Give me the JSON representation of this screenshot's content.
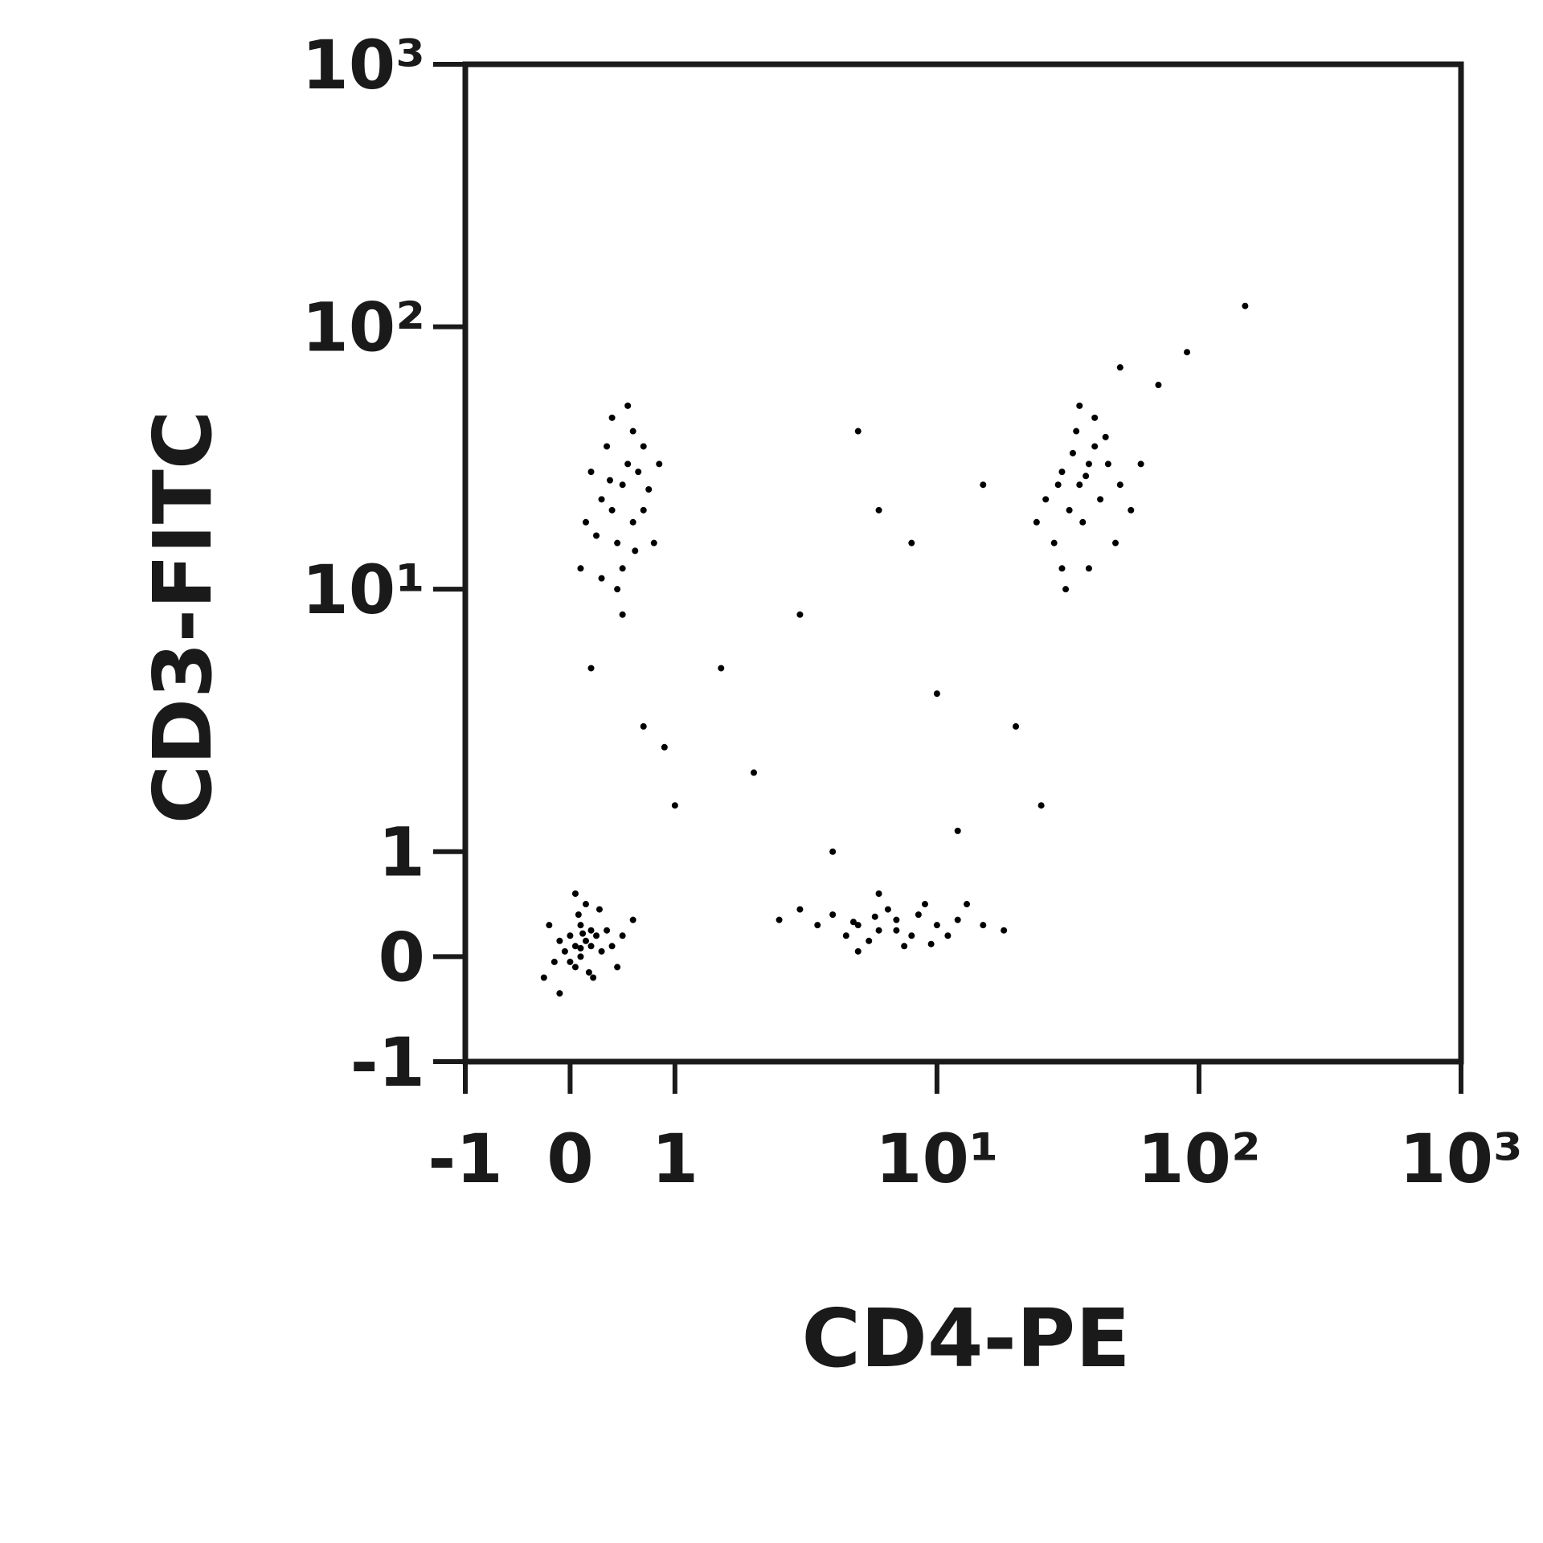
{
  "chart_data": {
    "type": "scatter",
    "x_label": "CD4-PE",
    "y_label": "CD3-FITC",
    "xscale": "symlog",
    "yscale": "symlog",
    "color": "#000000",
    "xlim": [
      -1,
      1000
    ],
    "ylim": [
      -1,
      1000
    ],
    "xticks": [
      -1,
      0,
      1,
      {
        "value": 10,
        "label": "10¹"
      },
      {
        "value": 100,
        "label": "10²"
      },
      {
        "value": 1000,
        "label": "10³"
      }
    ],
    "yticks": [
      -1,
      0,
      1,
      {
        "value": 10,
        "label": "10¹"
      },
      {
        "value": 100,
        "label": "10²"
      },
      {
        "value": 1000,
        "label": "10³"
      }
    ],
    "x": [
      0.05,
      0.1,
      0.0,
      0.15,
      -0.05,
      0.2,
      0.1,
      0.05,
      0.25,
      -0.1,
      0.3,
      0.12,
      0.0,
      0.18,
      -0.15,
      0.35,
      0.08,
      0.22,
      -0.2,
      0.4,
      0.15,
      0.5,
      -0.25,
      0.28,
      0.6,
      0.05,
      0.45,
      -0.1,
      0.1,
      0.2,
      0.4,
      0.5,
      0.6,
      0.45,
      0.55,
      0.3,
      0.7,
      0.5,
      0.35,
      0.65,
      0.25,
      0.6,
      0.45,
      0.8,
      0.2,
      0.55,
      0.4,
      0.7,
      0.3,
      0.5,
      0.15,
      0.75,
      0.62,
      0.38,
      0.1,
      0.85,
      5,
      6,
      7,
      4,
      8,
      10,
      5.5,
      3.5,
      12,
      6.5,
      9,
      4.5,
      7.5,
      15,
      11,
      3,
      5,
      8.5,
      6,
      13,
      2.5,
      18,
      7,
      4.8,
      9.5,
      5.8,
      35,
      38,
      32,
      40,
      30,
      36,
      42,
      28,
      45,
      34,
      38,
      26,
      50,
      33,
      40,
      30,
      55,
      24,
      37,
      44,
      29,
      60,
      35,
      48,
      31,
      0.7,
      1.5,
      3,
      6,
      8,
      15,
      10,
      2,
      20,
      70,
      90,
      150,
      50,
      0.2,
      1,
      4,
      12,
      25,
      0.9,
      5
    ],
    "values": [
      0.1,
      0.0,
      0.2,
      0.15,
      0.05,
      0.1,
      0.3,
      -0.1,
      0.2,
      0.15,
      0.05,
      0.22,
      -0.05,
      -0.15,
      -0.05,
      0.25,
      0.4,
      -0.2,
      0.3,
      0.1,
      0.5,
      0.2,
      -0.2,
      0.45,
      0.35,
      0.6,
      -0.1,
      -0.35,
      0.08,
      0.25,
      20,
      25,
      18,
      15,
      30,
      22,
      20,
      12,
      35,
      28,
      16,
      40,
      10,
      15,
      28,
      50,
      45,
      35,
      11,
      8,
      18,
      24,
      14,
      26,
      12,
      30,
      0.3,
      0.25,
      0.35,
      0.4,
      0.2,
      0.3,
      0.15,
      0.3,
      0.35,
      0.45,
      0.5,
      0.2,
      0.1,
      0.3,
      0.2,
      0.45,
      0.05,
      0.4,
      0.6,
      0.5,
      0.35,
      0.25,
      0.25,
      0.33,
      0.12,
      0.38,
      25,
      30,
      20,
      35,
      28,
      18,
      22,
      15,
      30,
      40,
      12,
      22,
      25,
      33,
      45,
      12,
      20,
      18,
      27,
      38,
      25,
      30,
      50,
      15,
      10,
      3,
      5,
      8,
      20,
      15,
      25,
      4,
      2,
      3,
      60,
      80,
      120,
      70,
      5,
      1.5,
      1,
      1.2,
      1.5,
      2.5,
      40
    ]
  }
}
